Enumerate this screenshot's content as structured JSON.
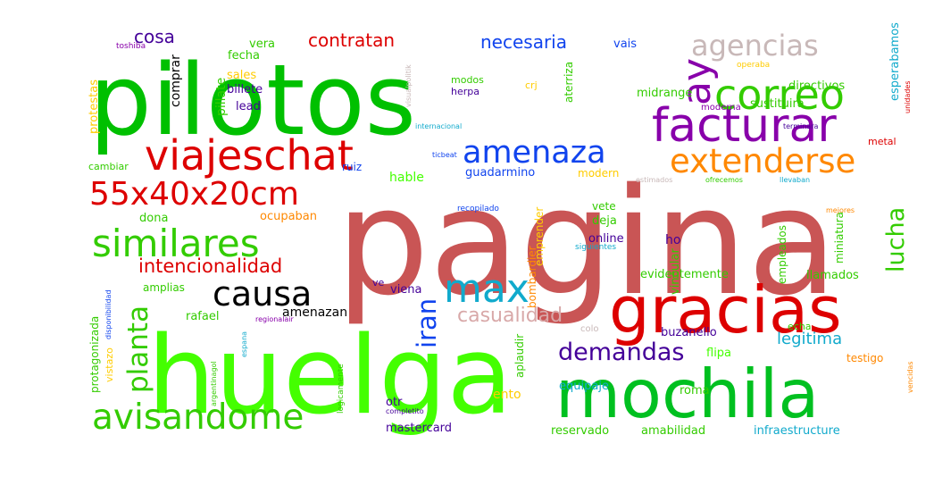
{
  "words": [
    {
      "text": "pagina",
      "color": "#c95555",
      "vertical": false
    },
    {
      "text": "pilotos",
      "color": "#00c000",
      "vertical": false
    },
    {
      "text": "huelga",
      "color": "#44ff00",
      "vertical": false
    },
    {
      "text": "mochila",
      "color": "#00c020",
      "vertical": false
    },
    {
      "text": "gracias",
      "color": "#dd0000",
      "vertical": false
    },
    {
      "text": "viajeschat",
      "color": "#dd0000",
      "vertical": false
    },
    {
      "text": "facturar",
      "color": "#8800aa",
      "vertical": false
    },
    {
      "text": "correo",
      "color": "#33cc00",
      "vertical": false
    },
    {
      "text": "agencias",
      "color": "#c8b8b8",
      "vertical": false
    },
    {
      "text": "amenaza",
      "color": "#1144ee",
      "vertical": false
    },
    {
      "text": "extenderse",
      "color": "#ff8800",
      "vertical": false
    },
    {
      "text": "55x40x20cm",
      "color": "#dd0000",
      "vertical": false
    },
    {
      "text": "similares",
      "color": "#33cc00",
      "vertical": false
    },
    {
      "text": "causa",
      "color": "#000000",
      "vertical": false
    },
    {
      "text": "avisandome",
      "color": "#33cc00",
      "vertical": false
    },
    {
      "text": "max",
      "color": "#11aacc",
      "vertical": false
    },
    {
      "text": "ay",
      "color": "#8800aa",
      "vertical": true
    },
    {
      "text": "lucha",
      "color": "#33cc00",
      "vertical": true
    },
    {
      "text": "planta",
      "color": "#33cc00",
      "vertical": true
    },
    {
      "text": "iran",
      "color": "#1144ee",
      "vertical": true
    },
    {
      "text": "demandas",
      "color": "#440099",
      "vertical": false
    },
    {
      "text": "casualidad",
      "color": "#d8a8a8",
      "vertical": false
    },
    {
      "text": "intencionalidad",
      "color": "#dd0000",
      "vertical": false
    },
    {
      "text": "legitima",
      "color": "#11aacc",
      "vertical": false
    },
    {
      "text": "contratan",
      "color": "#dd0000",
      "vertical": false
    },
    {
      "text": "necesaria",
      "color": "#1144ee",
      "vertical": false
    },
    {
      "text": "cosa",
      "color": "#440099",
      "vertical": false
    },
    {
      "text": "vais",
      "color": "#1144ee",
      "vertical": false
    },
    {
      "text": "vera",
      "color": "#33cc00",
      "vertical": false
    },
    {
      "text": "fecha",
      "color": "#33cc00",
      "vertical": false
    },
    {
      "text": "sales",
      "color": "#ffcc00",
      "vertical": false
    },
    {
      "text": "billete",
      "color": "#440099",
      "vertical": false
    },
    {
      "text": "lead",
      "color": "#440099",
      "vertical": false
    },
    {
      "text": "comprar",
      "color": "#000000",
      "vertical": true
    },
    {
      "text": "pillate",
      "color": "#33cc00",
      "vertical": true
    },
    {
      "text": "protestas",
      "color": "#ffcc00",
      "vertical": true
    },
    {
      "text": "toshiba",
      "color": "#8800aa",
      "vertical": false
    },
    {
      "text": "modos",
      "color": "#33cc00",
      "vertical": false
    },
    {
      "text": "herpa",
      "color": "#440099",
      "vertical": false
    },
    {
      "text": "crj",
      "color": "#ffcc00",
      "vertical": false
    },
    {
      "text": "aterriza",
      "color": "#33cc00",
      "vertical": true
    },
    {
      "text": "midrange",
      "color": "#33cc00",
      "vertical": false
    },
    {
      "text": "moderna",
      "color": "#8800aa",
      "vertical": false
    },
    {
      "text": "sustituira",
      "color": "#33cc00",
      "vertical": false
    },
    {
      "text": "directivos",
      "color": "#33cc00",
      "vertical": false
    },
    {
      "text": "esperabamos",
      "color": "#11aacc",
      "vertical": true
    },
    {
      "text": "metal",
      "color": "#dd0000",
      "vertical": false
    },
    {
      "text": "operaba",
      "color": "#ffcc00",
      "vertical": false
    },
    {
      "text": "unidades",
      "color": "#dd0000",
      "vertical": true
    },
    {
      "text": "cambiar",
      "color": "#33cc00",
      "vertical": false
    },
    {
      "text": "ruiz",
      "color": "#1144ee",
      "vertical": false
    },
    {
      "text": "hable",
      "color": "#44ff00",
      "vertical": false
    },
    {
      "text": "guadarmino",
      "color": "#1144ee",
      "vertical": false
    },
    {
      "text": "modern",
      "color": "#ffcc00",
      "vertical": false
    },
    {
      "text": "ticbeat",
      "color": "#1144ee",
      "vertical": false
    },
    {
      "text": "estimados",
      "color": "#c8b8b8",
      "vertical": false
    },
    {
      "text": "ofrecemos",
      "color": "#33cc00",
      "vertical": false
    },
    {
      "text": "llevaban",
      "color": "#11aacc",
      "vertical": false
    },
    {
      "text": "dona",
      "color": "#33cc00",
      "vertical": false
    },
    {
      "text": "ocupaban",
      "color": "#ff8800",
      "vertical": false
    },
    {
      "text": "amplias",
      "color": "#33cc00",
      "vertical": false
    },
    {
      "text": "rafael",
      "color": "#33cc00",
      "vertical": false
    },
    {
      "text": "amenazan",
      "color": "#000000",
      "vertical": false
    },
    {
      "text": "regionalair",
      "color": "#8800aa",
      "vertical": false
    },
    {
      "text": "ve",
      "color": "#440099",
      "vertical": false
    },
    {
      "text": "viena",
      "color": "#440099",
      "vertical": false
    },
    {
      "text": "vete",
      "color": "#33cc00",
      "vertical": false
    },
    {
      "text": "deja",
      "color": "#33cc00",
      "vertical": false
    },
    {
      "text": "online",
      "color": "#440099",
      "vertical": false
    },
    {
      "text": "ho",
      "color": "#440099",
      "vertical": false
    },
    {
      "text": "siguientes",
      "color": "#11aacc",
      "vertical": false
    },
    {
      "text": "recopilado",
      "color": "#1144ee",
      "vertical": false
    },
    {
      "text": "vincular",
      "color": "#33cc00",
      "vertical": true
    },
    {
      "text": "emprender",
      "color": "#ffcc00",
      "vertical": true
    },
    {
      "text": "bombardier",
      "color": "#ff8800",
      "vertical": true
    },
    {
      "text": "empleados",
      "color": "#33cc00",
      "vertical": true
    },
    {
      "text": "miniatura",
      "color": "#33cc00",
      "vertical": true
    },
    {
      "text": "mejores",
      "color": "#ff8800",
      "vertical": false
    },
    {
      "text": "evidentemente",
      "color": "#33cc00",
      "vertical": false
    },
    {
      "text": "llamados",
      "color": "#33cc00",
      "vertical": false
    },
    {
      "text": "echa",
      "color": "#33cc00",
      "vertical": false
    },
    {
      "text": "buzanello",
      "color": "#440099",
      "vertical": false
    },
    {
      "text": "testigo",
      "color": "#ff8800",
      "vertical": false
    },
    {
      "text": "flipa",
      "color": "#44ff00",
      "vertical": false
    },
    {
      "text": "colo",
      "color": "#c8b8b8",
      "vertical": false
    },
    {
      "text": "aplaudir",
      "color": "#33cc00",
      "vertical": true
    },
    {
      "text": "logicamente",
      "color": "#33cc00",
      "vertical": true
    },
    {
      "text": "protagonizada",
      "color": "#33cc00",
      "vertical": true
    },
    {
      "text": "disponibilidad",
      "color": "#1144ee",
      "vertical": true
    },
    {
      "text": "vistazo",
      "color": "#ffcc00",
      "vertical": true
    },
    {
      "text": "espana",
      "color": "#11aacc",
      "vertical": true
    },
    {
      "text": "argentinagol",
      "color": "#33cc00",
      "vertical": true
    },
    {
      "text": "visualpolitik",
      "color": "#c8b8b8",
      "vertical": true
    },
    {
      "text": "internacional",
      "color": "#11aacc",
      "vertical": false
    },
    {
      "text": "terminara",
      "color": "#440099",
      "vertical": false
    },
    {
      "text": "otr",
      "color": "#440099",
      "vertical": false
    },
    {
      "text": "completito",
      "color": "#440099",
      "vertical": false
    },
    {
      "text": "ento",
      "color": "#ffcc00",
      "vertical": false
    },
    {
      "text": "equipaje",
      "color": "#11aacc",
      "vertical": false
    },
    {
      "text": "roma",
      "color": "#33cc00",
      "vertical": false
    },
    {
      "text": "vencidas",
      "color": "#ff8800",
      "vertical": true
    },
    {
      "text": "mastercard",
      "color": "#440099",
      "vertical": false
    },
    {
      "text": "reservado",
      "color": "#33cc00",
      "vertical": false
    },
    {
      "text": "amabilidad",
      "color": "#33cc00",
      "vertical": false
    },
    {
      "text": "infraestructure",
      "color": "#11aacc",
      "vertical": false
    }
  ]
}
